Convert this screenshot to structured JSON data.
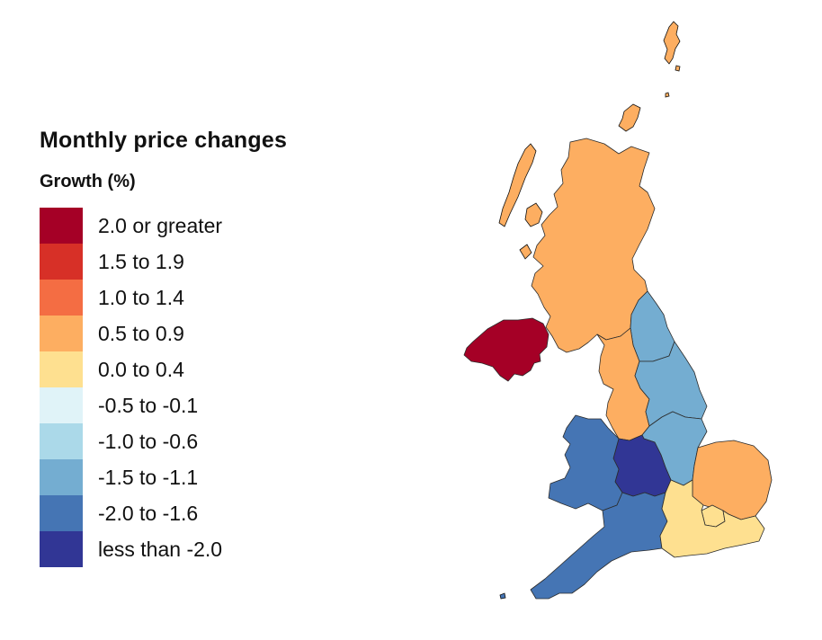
{
  "legend": {
    "title": "Monthly price changes",
    "subtitle": "Growth (%)",
    "items": [
      {
        "label": "2.0 or greater",
        "color": "#A50026"
      },
      {
        "label": "1.5 to 1.9",
        "color": "#D73027"
      },
      {
        "label": "1.0 to 1.4",
        "color": "#F46D43"
      },
      {
        "label": "0.5 to 0.9",
        "color": "#FDAE61"
      },
      {
        "label": "0.0 to 0.4",
        "color": "#FEE090"
      },
      {
        "label": "-0.5 to -0.1",
        "color": "#E0F3F8"
      },
      {
        "label": "-1.0 to -0.6",
        "color": "#ABD9E9"
      },
      {
        "label": "-1.5 to -1.1",
        "color": "#74ADD1"
      },
      {
        "label": "-2.0 to -1.6",
        "color": "#4575B4"
      },
      {
        "label": "less than -2.0",
        "color": "#313695"
      }
    ]
  },
  "regions": {
    "scotland": {
      "color": "#FDAE61"
    },
    "northern_ireland": {
      "color": "#A50026"
    },
    "north_west": {
      "color": "#FDAE61"
    },
    "north_east": {
      "color": "#74ADD1"
    },
    "yorkshire": {
      "color": "#74ADD1"
    },
    "east_midlands": {
      "color": "#74ADD1"
    },
    "west_midlands": {
      "color": "#313695"
    },
    "wales": {
      "color": "#4575B4"
    },
    "south_west": {
      "color": "#4575B4"
    },
    "east_of_england": {
      "color": "#FDAE61"
    },
    "london": {
      "color": "#FEE090"
    },
    "south_east": {
      "color": "#FEE090"
    }
  }
}
